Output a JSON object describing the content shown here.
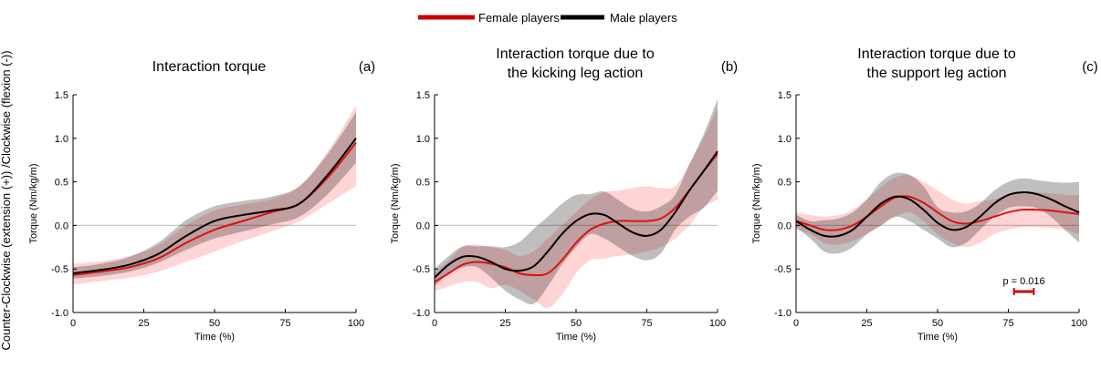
{
  "legend": {
    "female_label": "Female players",
    "male_label": "Male players",
    "female_color": "#cc0000",
    "male_color": "#000000"
  },
  "global_ylabel": "Counter-Clockwise (extension (+)) /Clockwise (flexion (-))",
  "colors": {
    "female_line": "#dd1111",
    "female_band": "#ffc6c6",
    "male_line": "#000000",
    "male_band": "#b4b4b4",
    "zero_line": "#c8c8c8",
    "axis": "#000000",
    "sig_bar": "#cc0000"
  },
  "chart_data": [
    {
      "type": "line",
      "title": "Interaction torque",
      "panel_letter": "(a)",
      "xlabel": "Time (%)",
      "ylabel": "Torque (Nm/kg/m)",
      "xlim": [
        0,
        100
      ],
      "ylim": [
        -1.0,
        1.5
      ],
      "xticks": [
        "0",
        "25",
        "50",
        "75",
        "100"
      ],
      "yticks": [
        "-1.0",
        "-0.5",
        "0.0",
        "0.5",
        "1.0",
        "1.5"
      ],
      "grid": false,
      "x": [
        0,
        10,
        20,
        30,
        40,
        50,
        60,
        70,
        80,
        90,
        100
      ],
      "series": [
        {
          "name": "Female players",
          "mean": [
            -0.57,
            -0.53,
            -0.48,
            -0.38,
            -0.2,
            -0.05,
            0.05,
            0.15,
            0.25,
            0.55,
            0.95
          ],
          "lower": [
            -0.68,
            -0.64,
            -0.6,
            -0.53,
            -0.42,
            -0.3,
            -0.18,
            -0.07,
            0.05,
            0.25,
            0.45
          ],
          "upper": [
            -0.44,
            -0.41,
            -0.35,
            -0.23,
            0.0,
            0.17,
            0.24,
            0.3,
            0.45,
            0.85,
            1.38
          ]
        },
        {
          "name": "Male players",
          "mean": [
            -0.55,
            -0.51,
            -0.45,
            -0.33,
            -0.12,
            0.05,
            0.12,
            0.17,
            0.25,
            0.58,
            1.0
          ],
          "lower": [
            -0.61,
            -0.58,
            -0.53,
            -0.43,
            -0.28,
            -0.15,
            -0.07,
            0.01,
            0.1,
            0.36,
            0.72
          ],
          "upper": [
            -0.48,
            -0.44,
            -0.36,
            -0.2,
            0.06,
            0.22,
            0.28,
            0.33,
            0.45,
            0.82,
            1.3
          ]
        }
      ]
    },
    {
      "type": "line",
      "title": "Interaction torque due to the kicking leg action",
      "title_lines": [
        "Interaction torque due to",
        "the kicking leg action"
      ],
      "panel_letter": "(b)",
      "xlabel": "Time (%)",
      "ylabel": "Torque (Nm/kg/m)",
      "xlim": [
        0,
        100
      ],
      "ylim": [
        -1.0,
        1.5
      ],
      "xticks": [
        "0",
        "25",
        "50",
        "75",
        "100"
      ],
      "yticks": [
        "-1.0",
        "-0.5",
        "0.0",
        "0.5",
        "1.0",
        "1.5"
      ],
      "grid": false,
      "x": [
        0,
        5,
        10,
        15,
        20,
        25,
        30,
        35,
        40,
        45,
        50,
        55,
        60,
        65,
        70,
        75,
        80,
        85,
        90,
        95,
        100
      ],
      "series": [
        {
          "name": "Female players",
          "mean": [
            -0.65,
            -0.55,
            -0.45,
            -0.42,
            -0.44,
            -0.48,
            -0.55,
            -0.57,
            -0.55,
            -0.4,
            -0.2,
            -0.05,
            0.02,
            0.05,
            0.05,
            0.05,
            0.08,
            0.2,
            0.4,
            0.62,
            0.82
          ],
          "lower": [
            -0.75,
            -0.7,
            -0.65,
            -0.65,
            -0.72,
            -0.68,
            -0.75,
            -0.85,
            -0.95,
            -0.8,
            -0.55,
            -0.4,
            -0.38,
            -0.35,
            -0.33,
            -0.3,
            -0.25,
            -0.15,
            0.0,
            0.2,
            0.3
          ],
          "upper": [
            -0.55,
            -0.4,
            -0.25,
            -0.22,
            -0.25,
            -0.28,
            -0.35,
            -0.3,
            -0.15,
            0.0,
            0.15,
            0.3,
            0.38,
            0.4,
            0.43,
            0.45,
            0.43,
            0.45,
            0.7,
            1.0,
            1.35
          ]
        },
        {
          "name": "Male players",
          "mean": [
            -0.6,
            -0.45,
            -0.36,
            -0.36,
            -0.42,
            -0.5,
            -0.52,
            -0.47,
            -0.3,
            -0.1,
            0.05,
            0.13,
            0.12,
            0.02,
            -0.08,
            -0.12,
            -0.05,
            0.15,
            0.4,
            0.62,
            0.85
          ],
          "lower": [
            -0.7,
            -0.55,
            -0.48,
            -0.48,
            -0.6,
            -0.75,
            -0.85,
            -0.9,
            -0.7,
            -0.45,
            -0.25,
            -0.1,
            -0.15,
            -0.25,
            -0.35,
            -0.4,
            -0.32,
            -0.05,
            0.1,
            0.2,
            0.4
          ],
          "upper": [
            -0.5,
            -0.35,
            -0.24,
            -0.24,
            -0.24,
            -0.25,
            -0.19,
            -0.04,
            0.1,
            0.25,
            0.35,
            0.36,
            0.39,
            0.29,
            0.19,
            0.16,
            0.22,
            0.35,
            0.7,
            1.04,
            1.45
          ]
        }
      ]
    },
    {
      "type": "line",
      "title": "Interaction torque due to the support leg action",
      "title_lines": [
        "Interaction torque due to",
        "the support leg action"
      ],
      "panel_letter": "(c)",
      "xlabel": "Time (%)",
      "ylabel": "Torque (Nm/kg/m)",
      "xlim": [
        0,
        100
      ],
      "ylim": [
        -1.0,
        1.5
      ],
      "xticks": [
        "0",
        "25",
        "50",
        "75",
        "100"
      ],
      "yticks": [
        "-1.0",
        "-0.5",
        "0.0",
        "0.5",
        "1.0",
        "1.5"
      ],
      "grid": false,
      "x": [
        0,
        5,
        10,
        15,
        20,
        25,
        30,
        35,
        40,
        45,
        50,
        55,
        60,
        65,
        70,
        75,
        80,
        85,
        90,
        95,
        100
      ],
      "series": [
        {
          "name": "Female players",
          "mean": [
            0.05,
            0.0,
            -0.05,
            -0.05,
            0.0,
            0.1,
            0.22,
            0.32,
            0.33,
            0.26,
            0.15,
            0.05,
            0.02,
            0.05,
            0.1,
            0.15,
            0.18,
            0.18,
            0.17,
            0.15,
            0.13
          ],
          "lower": [
            -0.05,
            -0.1,
            -0.2,
            -0.22,
            -0.18,
            -0.1,
            0.0,
            0.1,
            0.15,
            0.05,
            -0.1,
            -0.2,
            -0.25,
            -0.2,
            -0.1,
            -0.05,
            -0.02,
            -0.02,
            -0.03,
            -0.05,
            -0.1
          ],
          "upper": [
            0.15,
            0.12,
            0.1,
            0.12,
            0.18,
            0.3,
            0.44,
            0.55,
            0.58,
            0.5,
            0.4,
            0.3,
            0.25,
            0.28,
            0.3,
            0.35,
            0.38,
            0.38,
            0.37,
            0.35,
            0.35
          ]
        },
        {
          "name": "Male players",
          "mean": [
            0.05,
            -0.05,
            -0.12,
            -0.12,
            -0.05,
            0.1,
            0.25,
            0.33,
            0.3,
            0.18,
            0.03,
            -0.05,
            -0.02,
            0.1,
            0.25,
            0.35,
            0.38,
            0.36,
            0.3,
            0.22,
            0.15
          ],
          "lower": [
            -0.02,
            -0.15,
            -0.3,
            -0.32,
            -0.25,
            -0.1,
            0.0,
            0.1,
            0.05,
            -0.05,
            -0.15,
            -0.25,
            -0.2,
            -0.05,
            0.1,
            0.2,
            0.22,
            0.2,
            0.1,
            -0.05,
            -0.2
          ],
          "upper": [
            0.12,
            0.05,
            0.06,
            0.08,
            0.15,
            0.3,
            0.5,
            0.6,
            0.58,
            0.45,
            0.21,
            0.15,
            0.16,
            0.25,
            0.4,
            0.5,
            0.54,
            0.52,
            0.5,
            0.49,
            0.5
          ]
        }
      ],
      "annotation": {
        "text": "p = 0.016",
        "x_range": [
          77,
          84
        ],
        "y": -0.76
      }
    }
  ]
}
